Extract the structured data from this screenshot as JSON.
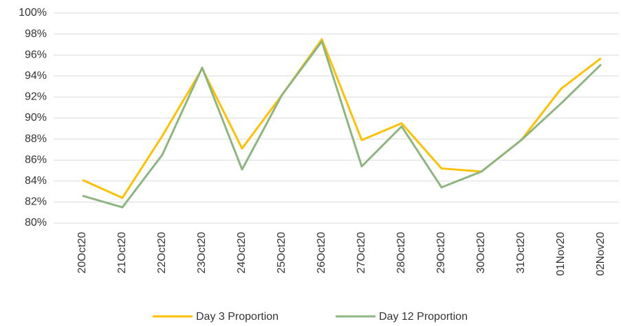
{
  "chart_data": {
    "type": "line",
    "categories": [
      "20Oct20",
      "21Oct20",
      "22Oct20",
      "23Oct20",
      "24Oct20",
      "25Oct20",
      "26Oct20",
      "27Oct20",
      "28Oct20",
      "29Oct20",
      "30Oct20",
      "31Oct20",
      "01Nov20",
      "02Nov20"
    ],
    "series": [
      {
        "name": "Day 3 Proportion",
        "color": "#ffc000",
        "values": [
          84.1,
          82.4,
          88.3,
          94.7,
          87.1,
          92.2,
          97.5,
          87.9,
          89.5,
          85.2,
          84.9,
          87.9,
          92.8,
          95.7
        ]
      },
      {
        "name": "Day 12 Proportion",
        "color": "#8db580",
        "values": [
          82.6,
          81.5,
          86.5,
          94.8,
          85.1,
          92.2,
          97.3,
          85.4,
          89.2,
          83.4,
          84.9,
          87.9,
          91.4,
          95.1
        ]
      }
    ],
    "ylim": [
      80,
      100
    ],
    "yticks": [
      {
        "value": 80,
        "label": "80%"
      },
      {
        "value": 82,
        "label": "82%"
      },
      {
        "value": 84,
        "label": "84%"
      },
      {
        "value": 86,
        "label": "86%"
      },
      {
        "value": 88,
        "label": "88%"
      },
      {
        "value": 90,
        "label": "90%"
      },
      {
        "value": 92,
        "label": "92%"
      },
      {
        "value": 94,
        "label": "94%"
      },
      {
        "value": 96,
        "label": "96%"
      },
      {
        "value": 98,
        "label": "98%"
      },
      {
        "value": 100,
        "label": "100%"
      }
    ],
    "grid": true,
    "legend": "bottom"
  }
}
